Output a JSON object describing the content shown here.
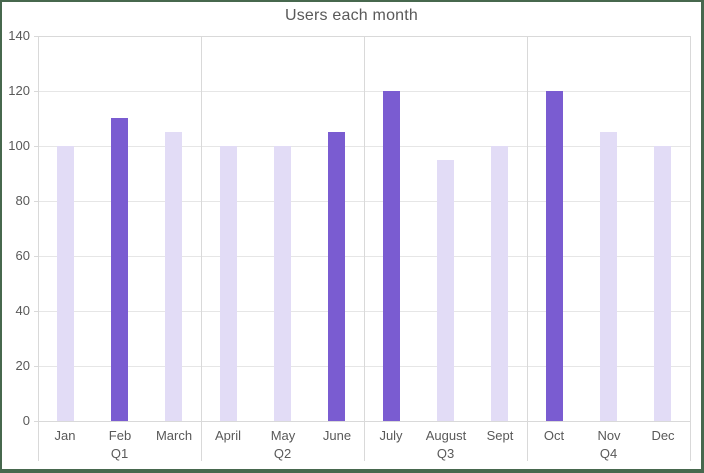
{
  "chart_data": {
    "type": "bar",
    "title": "Users each month",
    "categories": [
      "Jan",
      "Feb",
      "March",
      "April",
      "May",
      "June",
      "July",
      "August",
      "Sept",
      "Oct",
      "Nov",
      "Dec"
    ],
    "values": [
      100,
      110,
      105,
      100,
      100,
      105,
      120,
      95,
      100,
      120,
      105,
      100
    ],
    "highlighted_months": [
      "Feb",
      "June",
      "July",
      "Oct"
    ],
    "groups": [
      {
        "label": "Q1",
        "months": [
          "Jan",
          "Feb",
          "March"
        ]
      },
      {
        "label": "Q2",
        "months": [
          "April",
          "May",
          "June"
        ]
      },
      {
        "label": "Q3",
        "months": [
          "July",
          "August",
          "Sept"
        ]
      },
      {
        "label": "Q4",
        "months": [
          "Oct",
          "Nov",
          "Dec"
        ]
      }
    ],
    "y_ticks": [
      0,
      20,
      40,
      60,
      80,
      100,
      120,
      140
    ],
    "ylim": [
      0,
      140
    ],
    "xlabel": "",
    "ylabel": "",
    "grid": "horizontal",
    "legend": "none",
    "colors": {
      "bar_light": "#E2DCF6",
      "bar_dark": "#7A5CD1",
      "gridline": "#E6E6E6",
      "axis_line": "#D9D9D9",
      "text": "#595959",
      "frame_border": "#47684E",
      "background": "#FFFFFF"
    }
  }
}
